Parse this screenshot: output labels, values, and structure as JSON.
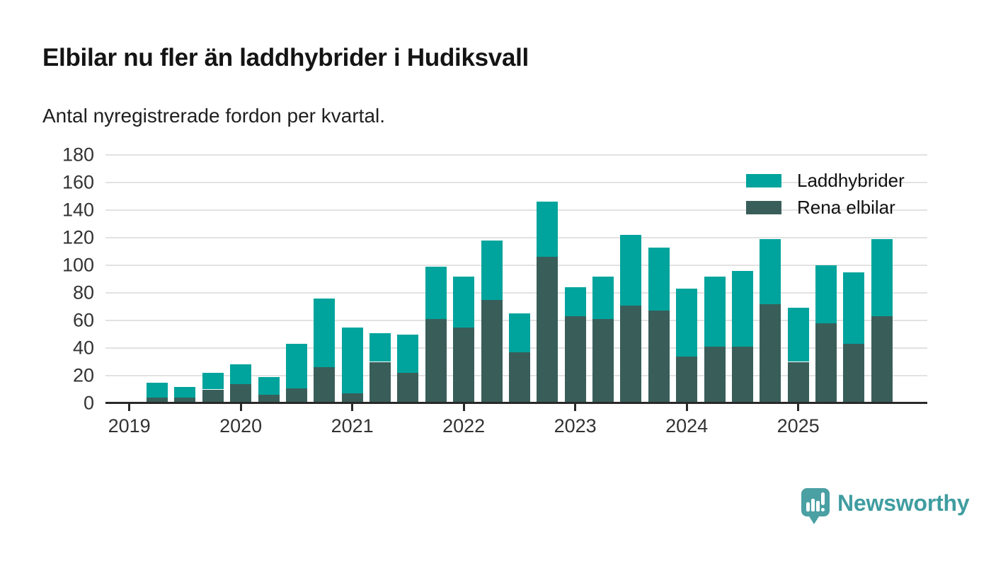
{
  "header": {
    "title": "Elbilar nu fler än laddhybrider i Hudiksvall",
    "subtitle": "Antal nyregistrerade fordon per kvartal."
  },
  "footer": {
    "brand": "Newsworthy",
    "logo_icon": "speech-bubble-bar-chart-icon"
  },
  "colors": {
    "laddhybrider": "#00a49d",
    "rena_elbilar": "#395e59",
    "gridline": "#e2e2e2",
    "axis": "#292929",
    "brand": "#3f9da0"
  },
  "chart_data": {
    "type": "bar",
    "stacked": true,
    "title": "Elbilar nu fler än laddhybrider i Hudiksvall",
    "subtitle": "Antal nyregistrerade fordon per kvartal.",
    "xlabel": "",
    "ylabel": "",
    "ylim": [
      0,
      180
    ],
    "ytick_step": 20,
    "yticks": [
      0,
      20,
      40,
      60,
      80,
      100,
      120,
      140,
      160,
      180
    ],
    "grid": true,
    "legend_position": "top-right",
    "categories": [
      "2019-Q2",
      "2019-Q3",
      "2019-Q4",
      "2020-Q1",
      "2020-Q2",
      "2020-Q3",
      "2020-Q4",
      "2021-Q1",
      "2021-Q2",
      "2021-Q3",
      "2021-Q4",
      "2022-Q1",
      "2022-Q2",
      "2022-Q3",
      "2022-Q4",
      "2023-Q1",
      "2023-Q2",
      "2023-Q3",
      "2023-Q4",
      "2024-Q1",
      "2024-Q2",
      "2024-Q3",
      "2024-Q4",
      "2025-Q1",
      "2025-Q2",
      "2025-Q3",
      "2025-Q4"
    ],
    "x_year_labels": [
      "2019",
      "2020",
      "2021",
      "2022",
      "2023",
      "2024",
      "2025"
    ],
    "series": [
      {
        "name": "Laddhybrider",
        "color": "#00a49d",
        "stack_order": "top",
        "values": [
          11,
          8,
          12,
          14,
          13,
          32,
          50,
          48,
          21,
          28,
          38,
          37,
          43,
          28,
          40,
          21,
          31,
          51,
          46,
          49,
          51,
          55,
          47,
          39,
          42,
          52,
          56
        ]
      },
      {
        "name": "Rena elbilar",
        "color": "#395e59",
        "stack_order": "bottom",
        "values": [
          4,
          4,
          10,
          14,
          6,
          11,
          26,
          7,
          30,
          22,
          61,
          55,
          75,
          37,
          106,
          63,
          61,
          71,
          67,
          34,
          41,
          41,
          72,
          30,
          58,
          43,
          63
        ]
      }
    ],
    "totals": [
      15,
      12,
      22,
      28,
      19,
      43,
      76,
      55,
      51,
      50,
      99,
      92,
      118,
      65,
      146,
      84,
      92,
      122,
      113,
      83,
      92,
      96,
      119,
      69,
      100,
      95,
      119
    ]
  }
}
